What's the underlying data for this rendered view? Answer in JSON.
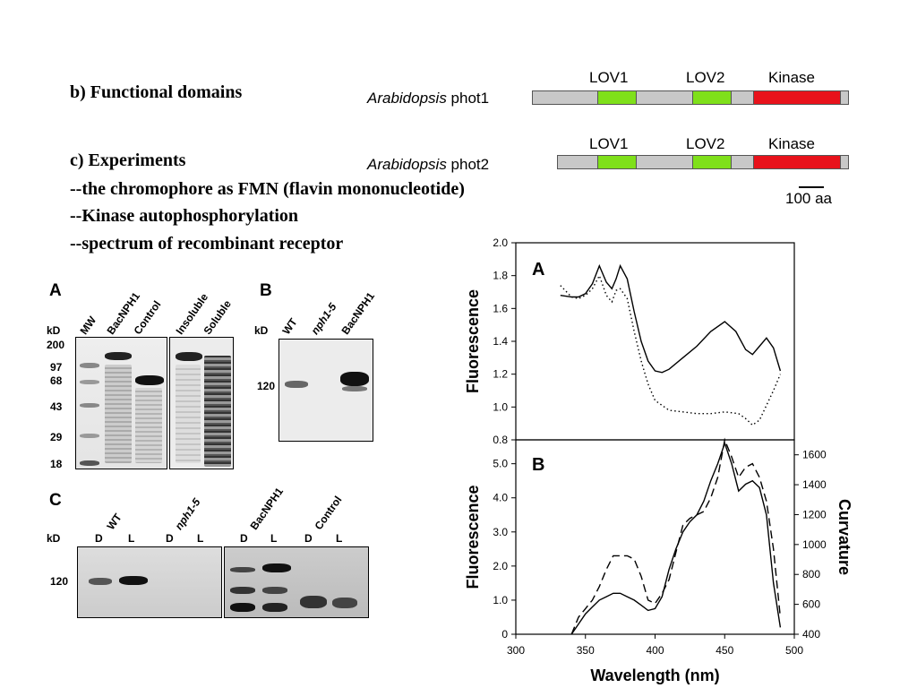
{
  "text": {
    "functional_domains": "b) Functional domains",
    "experiments": "c) Experiments",
    "exp1": "--the chromophore as FMN (flavin mononucleotide)",
    "exp2": "--Kinase autophosphorylation",
    "exp3": "--spectrum of recombinant receptor"
  },
  "domains": {
    "phot1_species": "Arabidopsis",
    "phot1_name": " phot1",
    "phot2_species": "Arabidopsis",
    "phot2_name": " phot2",
    "lov1": "LOV1",
    "lov2": "LOV2",
    "kinase": "Kinase",
    "scale": "100 aa",
    "colors": {
      "lov": "#7fe01a",
      "kinase": "#e8121b",
      "backbone": "#c8c8c8"
    }
  },
  "gelA": {
    "panel": "A",
    "kd": "kD",
    "markers": [
      "200",
      "97",
      "68",
      "43",
      "29",
      "18"
    ],
    "lanes": [
      "MW",
      "BacNPH1",
      "Control",
      "Insoluble",
      "Soluble"
    ]
  },
  "gelB": {
    "panel": "B",
    "kd": "kD",
    "marker": "120",
    "lanes": [
      "WT",
      "nph1-5",
      "BacNPH1"
    ]
  },
  "gelC": {
    "panel": "C",
    "kd": "kD",
    "marker": "120",
    "groups": [
      "WT",
      "nph1-5",
      "BacNPH1",
      "Control"
    ],
    "lanes": [
      "D",
      "L",
      "D",
      "L",
      "D",
      "L",
      "D",
      "L"
    ]
  },
  "chart_data": [
    {
      "type": "line",
      "panel": "A",
      "ylabel": "Fluorescence",
      "ylim": [
        0.8,
        2.0
      ],
      "yticks": [
        "2.0",
        "1.8",
        "1.6",
        "1.4",
        "1.2",
        "1.0",
        "0.8"
      ],
      "xlim": [
        300,
        500
      ],
      "series": [
        {
          "name": "solid",
          "style": "solid",
          "x": [
            332,
            340,
            345,
            350,
            355,
            360,
            365,
            369,
            372,
            375,
            380,
            385,
            390,
            395,
            400,
            405,
            410,
            420,
            430,
            440,
            450,
            458,
            465,
            470,
            475,
            480,
            485,
            490
          ],
          "y": [
            1.68,
            1.67,
            1.67,
            1.69,
            1.75,
            1.86,
            1.76,
            1.72,
            1.78,
            1.86,
            1.78,
            1.58,
            1.4,
            1.28,
            1.22,
            1.21,
            1.23,
            1.3,
            1.37,
            1.46,
            1.52,
            1.46,
            1.35,
            1.32,
            1.37,
            1.42,
            1.36,
            1.22
          ]
        },
        {
          "name": "dotted",
          "style": "dotted",
          "x": [
            332,
            340,
            345,
            350,
            355,
            360,
            365,
            369,
            372,
            375,
            380,
            385,
            390,
            395,
            400,
            410,
            420,
            430,
            440,
            450,
            460,
            465,
            470,
            475,
            480,
            485,
            490
          ],
          "y": [
            1.74,
            1.67,
            1.66,
            1.68,
            1.72,
            1.8,
            1.68,
            1.64,
            1.71,
            1.72,
            1.66,
            1.46,
            1.28,
            1.14,
            1.04,
            0.98,
            0.97,
            0.96,
            0.96,
            0.97,
            0.96,
            0.93,
            0.89,
            0.92,
            1.01,
            1.1,
            1.2
          ]
        }
      ]
    },
    {
      "type": "line",
      "panel": "B",
      "ylabel": "Fluorescence",
      "y2label": "Curvature",
      "xlabel": "Wavelength (nm)",
      "xlim": [
        300,
        500
      ],
      "ylim": [
        0,
        5.7
      ],
      "y2lim": [
        400,
        1700
      ],
      "xticks": [
        "300",
        "350",
        "400",
        "450",
        "500"
      ],
      "yticks": [
        "5.0",
        "4.0",
        "3.0",
        "2.0",
        "1.0",
        "0"
      ],
      "y2ticks": [
        "1600",
        "1400",
        "1200",
        "1000",
        "800",
        "600",
        "400"
      ],
      "series": [
        {
          "name": "solid",
          "style": "solid",
          "x": [
            340,
            345,
            350,
            355,
            360,
            365,
            370,
            375,
            380,
            385,
            390,
            395,
            400,
            405,
            410,
            415,
            420,
            425,
            430,
            435,
            440,
            445,
            450,
            455,
            460,
            465,
            470,
            475,
            480,
            485,
            490
          ],
          "y": [
            0,
            0.3,
            0.6,
            0.8,
            1.0,
            1.1,
            1.2,
            1.2,
            1.1,
            1.0,
            0.85,
            0.7,
            0.75,
            1.1,
            1.9,
            2.5,
            3.0,
            3.3,
            3.5,
            3.9,
            4.5,
            5.0,
            5.6,
            5.0,
            4.2,
            4.4,
            4.5,
            4.3,
            3.5,
            1.5,
            0.2
          ]
        },
        {
          "name": "dashed",
          "style": "dashed",
          "x": [
            340,
            345,
            350,
            355,
            360,
            365,
            370,
            375,
            380,
            385,
            390,
            395,
            400,
            405,
            410,
            415,
            420,
            425,
            430,
            435,
            440,
            445,
            450,
            455,
            460,
            465,
            470,
            475,
            480,
            485,
            490
          ],
          "y": [
            0,
            0.5,
            0.75,
            1.0,
            1.4,
            1.9,
            2.3,
            2.3,
            2.3,
            2.2,
            1.7,
            1.0,
            0.9,
            1.2,
            1.6,
            2.4,
            3.2,
            3.4,
            3.5,
            3.6,
            4.0,
            4.6,
            5.7,
            5.2,
            4.6,
            4.9,
            5.0,
            4.6,
            3.9,
            2.5,
            0.5
          ]
        }
      ]
    }
  ]
}
